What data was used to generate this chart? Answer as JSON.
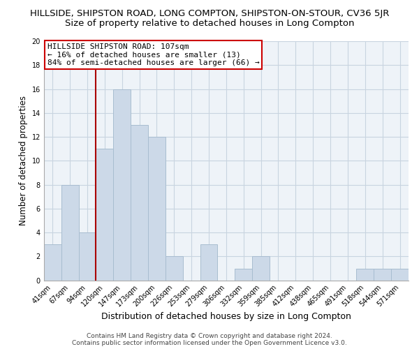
{
  "title": "HILLSIDE, SHIPSTON ROAD, LONG COMPTON, SHIPSTON-ON-STOUR, CV36 5JR",
  "subtitle": "Size of property relative to detached houses in Long Compton",
  "xlabel": "Distribution of detached houses by size in Long Compton",
  "ylabel": "Number of detached properties",
  "bin_labels": [
    "41sqm",
    "67sqm",
    "94sqm",
    "120sqm",
    "147sqm",
    "173sqm",
    "200sqm",
    "226sqm",
    "253sqm",
    "279sqm",
    "306sqm",
    "332sqm",
    "359sqm",
    "385sqm",
    "412sqm",
    "438sqm",
    "465sqm",
    "491sqm",
    "518sqm",
    "544sqm",
    "571sqm"
  ],
  "bar_heights": [
    3,
    8,
    4,
    11,
    16,
    13,
    12,
    2,
    0,
    3,
    0,
    1,
    2,
    0,
    0,
    0,
    0,
    0,
    1,
    1,
    1
  ],
  "bar_color": "#ccd9e8",
  "bar_edge_color": "#a8bdd0",
  "highlight_line_color": "#aa0000",
  "annotation_line1": "HILLSIDE SHIPSTON ROAD: 107sqm",
  "annotation_line2": "← 16% of detached houses are smaller (13)",
  "annotation_line3": "84% of semi-detached houses are larger (66) →",
  "annotation_box_color": "#ffffff",
  "annotation_box_edge_color": "#cc0000",
  "ylim": [
    0,
    20
  ],
  "yticks": [
    0,
    2,
    4,
    6,
    8,
    10,
    12,
    14,
    16,
    18,
    20
  ],
  "grid_color": "#c8d4e0",
  "plot_bg_color": "#eef3f8",
  "background_color": "#ffffff",
  "footer_text": "Contains HM Land Registry data © Crown copyright and database right 2024.\nContains public sector information licensed under the Open Government Licence v3.0.",
  "title_fontsize": 9.5,
  "subtitle_fontsize": 9.5,
  "xlabel_fontsize": 9,
  "ylabel_fontsize": 8.5,
  "tick_fontsize": 7,
  "annotation_fontsize": 8,
  "footer_fontsize": 6.5,
  "red_line_index": 2.5
}
